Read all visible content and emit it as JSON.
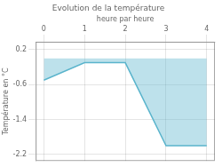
{
  "chart_data": {
    "type": "area",
    "title": "Evolution de la température",
    "xlabel": "heure par heure",
    "ylabel": "Température en °C",
    "x": [
      0,
      1,
      2,
      3,
      4
    ],
    "values": [
      -0.5,
      -0.1,
      -0.1,
      -2.0,
      -2.0
    ],
    "color": "#5ab4cc",
    "xlim": [
      -0.2,
      4.2
    ],
    "ylim": [
      -2.35,
      0.38
    ],
    "xticks": [
      0,
      1,
      2,
      3,
      4
    ],
    "yticks": [
      0.2,
      -0.6,
      -1.4,
      -2.2
    ],
    "grid": true
  }
}
